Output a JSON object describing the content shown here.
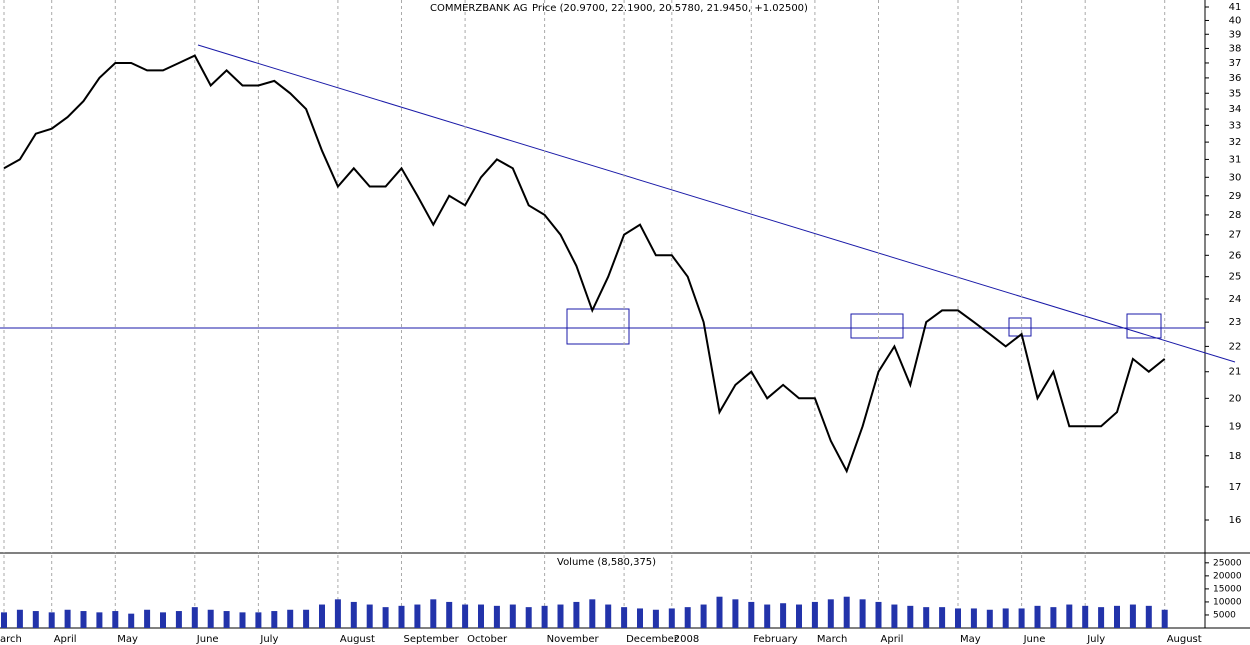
{
  "chart_data": [
    {
      "type": "line",
      "title": "COMMERZBANK AG",
      "subtitle": "Price (20.9700, 22.1900, 20.5780, 21.9450, +1.02500)",
      "categories": [
        "arch",
        null,
        null,
        "April",
        null,
        null,
        null,
        "May",
        null,
        null,
        null,
        null,
        "June",
        null,
        null,
        null,
        "July",
        null,
        null,
        null,
        null,
        "August",
        null,
        null,
        null,
        "September",
        null,
        null,
        null,
        "October",
        null,
        null,
        null,
        null,
        "November",
        null,
        null,
        null,
        null,
        "December",
        null,
        null,
        "2008",
        null,
        null,
        null,
        null,
        "February",
        null,
        null,
        null,
        "March",
        null,
        null,
        null,
        "April",
        null,
        null,
        null,
        null,
        "May",
        null,
        null,
        null,
        "June",
        null,
        null,
        null,
        "July",
        null,
        null,
        null,
        null,
        "August"
      ],
      "values": [
        30.5,
        31,
        32.5,
        32.8,
        33.5,
        34.5,
        36,
        37,
        37,
        36.5,
        36.5,
        37,
        37.5,
        35.5,
        36.5,
        35.5,
        35.5,
        35.8,
        35,
        34,
        31.5,
        29.5,
        30.5,
        29.5,
        29.5,
        30.5,
        29,
        27.5,
        29,
        28.5,
        30,
        31,
        30.5,
        28.5,
        28,
        27,
        25.5,
        23.5,
        25,
        27,
        27.5,
        26,
        26,
        25,
        23,
        19.5,
        20.5,
        21,
        20,
        20.5,
        20,
        20,
        18.5,
        17.5,
        19,
        21,
        22,
        20.5,
        23,
        23.5,
        23.5,
        23,
        22.5,
        22,
        22.5,
        20,
        21,
        19,
        19,
        19,
        19.5,
        21.5,
        21,
        21.5
      ],
      "color": "#000000",
      "log_scale": true,
      "ylim": [
        15.06,
        41.53
      ],
      "yticks": [
        16,
        17,
        18,
        19,
        20,
        21,
        22,
        23,
        24,
        25,
        26,
        27,
        28,
        29,
        30,
        31,
        32,
        33,
        34,
        35,
        36,
        37,
        38,
        39,
        40,
        41
      ],
      "grid": true
    },
    {
      "type": "bar",
      "title": "Volume (8,580,375)",
      "values": [
        6000,
        7000,
        6500,
        6000,
        7000,
        6500,
        6000,
        6500,
        5500,
        7000,
        6000,
        6500,
        8000,
        7000,
        6500,
        6000,
        6000,
        6500,
        7000,
        7000,
        9000,
        11000,
        10000,
        9000,
        8000,
        8500,
        9000,
        11000,
        10000,
        9000,
        9000,
        8500,
        9000,
        8000,
        8500,
        9000,
        10000,
        11000,
        9000,
        8000,
        7500,
        7000,
        7500,
        8000,
        9000,
        12000,
        11000,
        10000,
        9000,
        9500,
        9000,
        10000,
        11000,
        12000,
        11000,
        10000,
        9000,
        8500,
        8000,
        8000,
        7500,
        7500,
        7000,
        7500,
        7500,
        8500,
        8000,
        9000,
        8500,
        8000,
        8500,
        9000,
        8500,
        7000
      ],
      "color": "#2233aa",
      "ylim": [
        0,
        28000
      ],
      "yticks": [
        5000,
        10000,
        15000,
        20000,
        25000
      ]
    }
  ]
}
